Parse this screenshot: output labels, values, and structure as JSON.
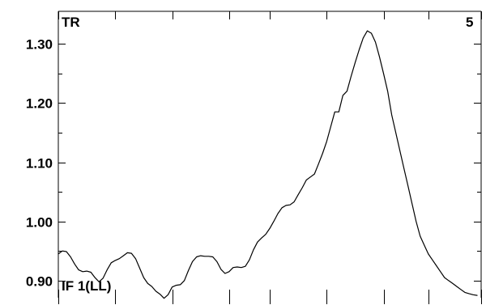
{
  "chart_data": {
    "type": "line",
    "title": "",
    "xlabel": "",
    "ylabel": "",
    "grid": false,
    "legend": "none",
    "corner_labels": {
      "top_left": "TR",
      "top_right": "5",
      "bottom_left": "IF 1(LL)"
    },
    "ylim": [
      0.871,
      1.355
    ],
    "xlim": [
      0,
      520
    ],
    "y_ticks": [
      0.9,
      1.0,
      1.1,
      1.2,
      1.3
    ],
    "y_tick_labels": [
      "0.90",
      "1.00",
      "1.10",
      "1.20",
      "1.30"
    ],
    "y_minor_ticks": [
      0.95,
      1.05,
      1.15,
      1.25
    ],
    "x_ticks": [
      0,
      70,
      140,
      210,
      260,
      330,
      400,
      455,
      520
    ],
    "series": [
      {
        "color": "#000000",
        "x": [
          0,
          5,
          10,
          15,
          20,
          25,
          30,
          35,
          40,
          45,
          50,
          55,
          60,
          65,
          70,
          75,
          80,
          85,
          90,
          95,
          100,
          105,
          110,
          115,
          120,
          125,
          130,
          135,
          140,
          145,
          150,
          155,
          160,
          165,
          170,
          175,
          180,
          185,
          190,
          195,
          200,
          205,
          210,
          215,
          220,
          225,
          230,
          235,
          240,
          245,
          250,
          255,
          260,
          265,
          270,
          275,
          280,
          285,
          290,
          295,
          300,
          305,
          310,
          315,
          320,
          325,
          330,
          335,
          340,
          345,
          350,
          355,
          360,
          365,
          370,
          375,
          380,
          385,
          390,
          395,
          400,
          405,
          410,
          415,
          420,
          425,
          430,
          435,
          440,
          445,
          450,
          455,
          460,
          465,
          470,
          475,
          480,
          485,
          490,
          495,
          500,
          505,
          510,
          515
        ],
        "y": [
          0.945,
          0.95,
          0.949,
          0.94,
          0.928,
          0.918,
          0.915,
          0.916,
          0.914,
          0.905,
          0.898,
          0.904,
          0.918,
          0.93,
          0.934,
          0.937,
          0.942,
          0.947,
          0.946,
          0.937,
          0.921,
          0.905,
          0.895,
          0.89,
          0.882,
          0.877,
          0.87,
          0.876,
          0.889,
          0.892,
          0.893,
          0.9,
          0.917,
          0.932,
          0.94,
          0.942,
          0.941,
          0.941,
          0.94,
          0.932,
          0.919,
          0.912,
          0.915,
          0.922,
          0.923,
          0.922,
          0.924,
          0.935,
          0.952,
          0.965,
          0.972,
          0.978,
          0.988,
          1.0,
          1.013,
          1.023,
          1.027,
          1.028,
          1.033,
          1.045,
          1.057,
          1.07,
          1.075,
          1.08,
          1.097,
          1.115,
          1.135,
          1.16,
          1.185,
          1.185,
          1.213,
          1.22,
          1.245,
          1.268,
          1.29,
          1.31,
          1.322,
          1.318,
          1.303,
          1.278,
          1.25,
          1.22,
          1.18,
          1.15,
          1.12,
          1.09,
          1.06,
          1.03,
          1.0,
          0.975,
          0.96,
          0.945,
          0.935,
          0.925,
          0.915,
          0.905,
          0.9,
          0.895,
          0.89,
          0.885,
          0.88,
          0.878,
          0.876,
          0.875
        ]
      }
    ]
  }
}
